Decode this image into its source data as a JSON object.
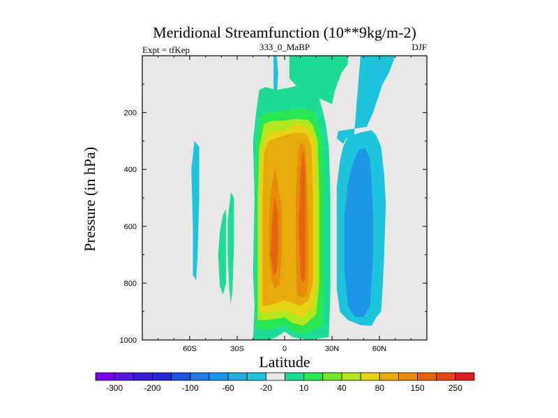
{
  "chart_data": {
    "type": "heatmap",
    "title": "Meridional Streamfunction (10**9kg/m-2)",
    "left_string": "Expt = tfKep",
    "center_string": "333_0_MaBP",
    "right_string": "DJF",
    "xlabel": "Latitude",
    "ylabel": "Pressure (in hPa)",
    "x_ticks": [
      {
        "value": -60,
        "label": "60S"
      },
      {
        "value": -30,
        "label": "30S"
      },
      {
        "value": 0,
        "label": "0"
      },
      {
        "value": 30,
        "label": "30N"
      },
      {
        "value": 60,
        "label": "60N"
      }
    ],
    "y_ticks": [
      {
        "value": 200,
        "label": "200"
      },
      {
        "value": 400,
        "label": "400"
      },
      {
        "value": 600,
        "label": "600"
      },
      {
        "value": 800,
        "label": "800"
      },
      {
        "value": 1000,
        "label": "1000"
      }
    ],
    "xlim": [
      -90,
      90
    ],
    "ylim": [
      1000,
      0
    ],
    "background_color": "#e8e8e8",
    "colorbar": {
      "colors": [
        "#7a00e6",
        "#5a14e0",
        "#3c1ed6",
        "#2828d2",
        "#1e50dc",
        "#1e78e6",
        "#1e96e6",
        "#28aadc",
        "#1ec3dc",
        "#e8e8e8",
        "#1edc96",
        "#28e650",
        "#78e628",
        "#b4e61e",
        "#e6d214",
        "#e6aa0a",
        "#e68c0a",
        "#e6640a",
        "#e64614",
        "#dc1e1e"
      ],
      "labels": [
        {
          "after_index": 0,
          "text": "-300"
        },
        {
          "after_index": 2,
          "text": "-200"
        },
        {
          "after_index": 4,
          "text": "-100"
        },
        {
          "after_index": 6,
          "text": "-60"
        },
        {
          "after_index": 8,
          "text": "-20"
        },
        {
          "after_index": 10,
          "text": "10"
        },
        {
          "after_index": 12,
          "text": "40"
        },
        {
          "after_index": 14,
          "text": "80"
        },
        {
          "after_index": 16,
          "text": "150"
        },
        {
          "after_index": 18,
          "text": "250"
        }
      ]
    },
    "regions": [
      {
        "color": "#1ec3dc",
        "points": [
          [
            -5,
            0
          ],
          [
            -4,
            60
          ],
          [
            -5,
            150
          ],
          [
            -4,
            280
          ],
          [
            -5,
            380
          ],
          [
            -4,
            430
          ],
          [
            -6,
            400
          ],
          [
            -6,
            250
          ],
          [
            -7,
            100
          ],
          [
            -7,
            0
          ]
        ]
      },
      {
        "color": "#1edc96",
        "points": [
          [
            3,
            0
          ],
          [
            13,
            0
          ],
          [
            18,
            0
          ],
          [
            40,
            0
          ],
          [
            40,
            30
          ],
          [
            36,
            60
          ],
          [
            32,
            120
          ],
          [
            30,
            170
          ],
          [
            10,
            120
          ],
          [
            3,
            80
          ]
        ]
      },
      {
        "color": "#1ec3dc",
        "points": [
          [
            48,
            0
          ],
          [
            70,
            0
          ],
          [
            66,
            60
          ],
          [
            62,
            100
          ],
          [
            59,
            150
          ],
          [
            56,
            200
          ],
          [
            52,
            250
          ],
          [
            40,
            260
          ],
          [
            34,
            265
          ],
          [
            33,
            290
          ],
          [
            37,
            310
          ],
          [
            39,
            290
          ],
          [
            44,
            280
          ]
        ]
      },
      {
        "color": "#1ec3dc",
        "points": [
          [
            -57,
            300
          ],
          [
            -54,
            320
          ],
          [
            -54,
            500
          ],
          [
            -55,
            700
          ],
          [
            -56,
            790
          ],
          [
            -58,
            770
          ],
          [
            -58,
            600
          ],
          [
            -59,
            400
          ]
        ]
      },
      {
        "color": "#1edc96",
        "points": [
          [
            -39,
            560
          ],
          [
            -37,
            540
          ],
          [
            -37,
            800
          ],
          [
            -39,
            840
          ],
          [
            -41,
            810
          ],
          [
            -42,
            700
          ],
          [
            -41,
            620
          ]
        ]
      },
      {
        "color": "#1edc96",
        "points": [
          [
            -34,
            480
          ],
          [
            -32,
            500
          ],
          [
            -32,
            660
          ],
          [
            -33,
            830
          ],
          [
            -34,
            870
          ],
          [
            -35,
            820
          ],
          [
            -36,
            700
          ],
          [
            -36,
            580
          ]
        ]
      },
      {
        "color": "#1ec3dc",
        "points": [
          [
            33,
            460
          ],
          [
            35,
            370
          ],
          [
            37,
            320
          ],
          [
            40,
            285
          ],
          [
            48,
            270
          ],
          [
            55,
            262
          ],
          [
            58,
            280
          ],
          [
            61,
            320
          ],
          [
            63,
            420
          ],
          [
            64,
            520
          ],
          [
            63,
            700
          ],
          [
            62,
            820
          ],
          [
            61,
            900
          ],
          [
            58,
            920
          ],
          [
            55,
            950
          ],
          [
            48,
            948
          ],
          [
            40,
            930
          ],
          [
            35,
            900
          ],
          [
            33,
            820
          ],
          [
            33,
            700
          ]
        ]
      },
      {
        "color": "#1e96e6",
        "points": [
          [
            38,
            560
          ],
          [
            40,
            450
          ],
          [
            43,
            380
          ],
          [
            47,
            330
          ],
          [
            51,
            325
          ],
          [
            54,
            360
          ],
          [
            55,
            440
          ],
          [
            56,
            560
          ],
          [
            56,
            700
          ],
          [
            55,
            800
          ],
          [
            54,
            880
          ],
          [
            50,
            920
          ],
          [
            44,
            918
          ],
          [
            40,
            880
          ],
          [
            38,
            760
          ]
        ]
      },
      {
        "color": "#1edc96",
        "points": [
          [
            -20,
            1000
          ],
          [
            -19,
            880
          ],
          [
            -20,
            760
          ],
          [
            -19,
            500
          ],
          [
            -20,
            300
          ],
          [
            -18,
            200
          ],
          [
            -16,
            120
          ],
          [
            -12,
            110
          ],
          [
            -5,
            120
          ],
          [
            5,
            110
          ],
          [
            15,
            90
          ],
          [
            21,
            130
          ],
          [
            24,
            190
          ],
          [
            26,
            240
          ],
          [
            28,
            320
          ],
          [
            29,
            500
          ],
          [
            29,
            820
          ],
          [
            28,
            990
          ],
          [
            15,
            1000
          ],
          [
            5,
            990
          ],
          [
            0,
            970
          ],
          [
            -5,
            990
          ],
          [
            -10,
            1000
          ]
        ]
      },
      {
        "color": "#28e650",
        "points": [
          [
            -18,
            960
          ],
          [
            -18,
            820
          ],
          [
            -18,
            500
          ],
          [
            -18,
            300
          ],
          [
            -15,
            210
          ],
          [
            -10,
            200
          ],
          [
            -4,
            195
          ],
          [
            4,
            190
          ],
          [
            12,
            185
          ],
          [
            18,
            195
          ],
          [
            21,
            230
          ],
          [
            24,
            300
          ],
          [
            25,
            500
          ],
          [
            25,
            800
          ],
          [
            24,
            950
          ],
          [
            12,
            980
          ],
          [
            5,
            970
          ],
          [
            0,
            945
          ],
          [
            -5,
            955
          ],
          [
            -10,
            965
          ]
        ]
      },
      {
        "color": "#b4e61e",
        "points": [
          [
            -17,
            930
          ],
          [
            -17,
            800
          ],
          [
            -17,
            500
          ],
          [
            -16,
            320
          ],
          [
            -13,
            240
          ],
          [
            -8,
            230
          ],
          [
            0,
            228
          ],
          [
            8,
            222
          ],
          [
            15,
            226
          ],
          [
            18,
            245
          ],
          [
            21,
            300
          ],
          [
            22,
            500
          ],
          [
            22,
            800
          ],
          [
            20,
            910
          ],
          [
            12,
            950
          ],
          [
            5,
            940
          ],
          [
            0,
            920
          ],
          [
            -5,
            925
          ],
          [
            -12,
            930
          ]
        ]
      },
      {
        "color": "#e6d214",
        "points": [
          [
            -16,
            900
          ],
          [
            -16,
            700
          ],
          [
            -16,
            500
          ],
          [
            -15,
            330
          ],
          [
            -10,
            270
          ],
          [
            -5,
            265
          ],
          [
            2,
            262
          ],
          [
            6,
            240
          ],
          [
            11,
            245
          ],
          [
            16,
            260
          ],
          [
            19,
            300
          ],
          [
            20,
            500
          ],
          [
            20,
            800
          ],
          [
            18,
            880
          ],
          [
            12,
            920
          ],
          [
            6,
            910
          ],
          [
            0,
            895
          ],
          [
            -6,
            900
          ],
          [
            -11,
            905
          ]
        ]
      },
      {
        "color": "#e6aa0a",
        "points": [
          [
            -14,
            880
          ],
          [
            -14,
            700
          ],
          [
            -14,
            500
          ],
          [
            -13,
            340
          ],
          [
            -10,
            300
          ],
          [
            -5,
            290
          ],
          [
            0,
            280
          ],
          [
            5,
            272
          ],
          [
            10,
            270
          ],
          [
            14,
            275
          ],
          [
            17,
            320
          ],
          [
            18,
            500
          ],
          [
            18,
            800
          ],
          [
            15,
            860
          ],
          [
            10,
            880
          ],
          [
            5,
            870
          ],
          [
            0,
            860
          ],
          [
            -5,
            870
          ],
          [
            -10,
            878
          ]
        ]
      },
      {
        "color": "#e68c0a",
        "points": [
          [
            -9,
            500
          ],
          [
            -7,
            420
          ],
          [
            -6,
            400
          ],
          [
            -4,
            460
          ],
          [
            -2,
            540
          ],
          [
            -2,
            700
          ],
          [
            -3,
            800
          ],
          [
            -6,
            820
          ],
          [
            -8,
            790
          ],
          [
            -10,
            700
          ],
          [
            -10,
            600
          ]
        ]
      },
      {
        "color": "#e68c0a",
        "points": [
          [
            8,
            400
          ],
          [
            9,
            330
          ],
          [
            10,
            310
          ],
          [
            12,
            310
          ],
          [
            13,
            320
          ],
          [
            14,
            400
          ],
          [
            15,
            600
          ],
          [
            15,
            780
          ],
          [
            14,
            840
          ],
          [
            11,
            850
          ],
          [
            8,
            840
          ],
          [
            7,
            700
          ],
          [
            7,
            500
          ]
        ]
      },
      {
        "color": "#e6640a",
        "points": [
          [
            -8,
            600
          ],
          [
            -7,
            520
          ],
          [
            -6,
            500
          ],
          [
            -4,
            560
          ],
          [
            -4,
            680
          ],
          [
            -5,
            760
          ],
          [
            -7,
            770
          ],
          [
            -9,
            700
          ]
        ]
      },
      {
        "color": "#e6640a",
        "points": [
          [
            10,
            430
          ],
          [
            11,
            350
          ],
          [
            12,
            340
          ],
          [
            13,
            400
          ],
          [
            13,
            600
          ],
          [
            13,
            780
          ],
          [
            12,
            800
          ],
          [
            10,
            780
          ],
          [
            9,
            600
          ]
        ]
      }
    ]
  }
}
